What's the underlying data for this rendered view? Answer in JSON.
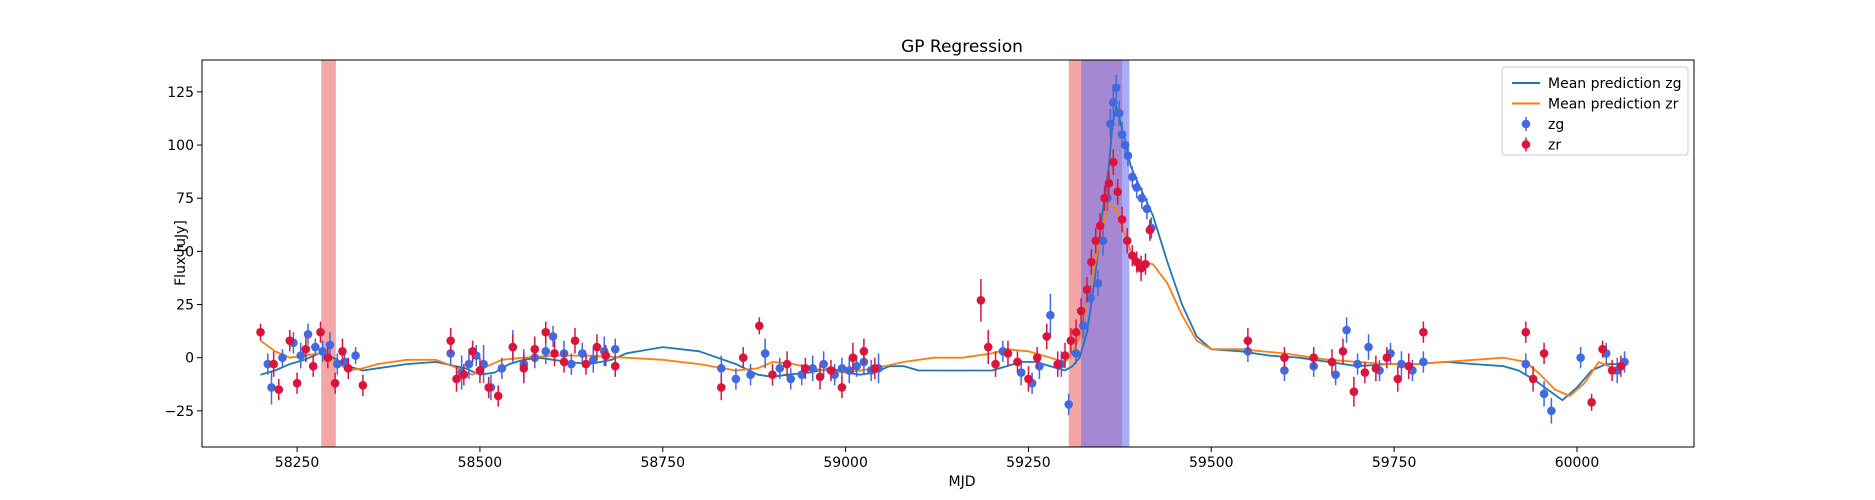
{
  "chart_data": {
    "type": "scatter",
    "title": "GP Regression",
    "xlabel": "MJD",
    "ylabel": "Flux [uJy]",
    "xlim": [
      58120,
      60160
    ],
    "ylim": [
      -42,
      140
    ],
    "xticks": [
      58250,
      58500,
      58750,
      59000,
      59250,
      59500,
      59750,
      60000
    ],
    "yticks": [
      -25,
      0,
      25,
      50,
      75,
      100,
      125
    ],
    "grid": false,
    "legend_position": "top-right",
    "legend": [
      "Mean prediction zg",
      "Mean prediction zr",
      "zg",
      "zr"
    ],
    "colors": {
      "zg_line": "#1f77b4",
      "zr_line": "#ff7f0e",
      "zg_points": "#4169e1",
      "zr_points": "#dc143c",
      "band_red": "#f08080",
      "band_blue": "#6f73f0"
    },
    "shaded_regions": [
      {
        "x0": 58283,
        "x1": 58303,
        "color": "red"
      },
      {
        "x0": 59305,
        "x1": 59378,
        "color": "red"
      },
      {
        "x0": 59322,
        "x1": 59388,
        "color": "blue"
      }
    ],
    "series": [
      {
        "name": "Mean prediction zg",
        "kind": "line",
        "x": [
          58200,
          58220,
          58240,
          58260,
          58280,
          58300,
          58320,
          58340,
          58360,
          58400,
          58440,
          58480,
          58500,
          58520,
          58540,
          58560,
          58580,
          58600,
          58620,
          58650,
          58680,
          58700,
          58750,
          58800,
          58850,
          58880,
          58900,
          58920,
          58950,
          58980,
          59000,
          59020,
          59040,
          59060,
          59080,
          59100,
          59150,
          59200,
          59220,
          59240,
          59260,
          59280,
          59300,
          59310,
          59320,
          59330,
          59340,
          59350,
          59360,
          59365,
          59370,
          59380,
          59390,
          59400,
          59420,
          59440,
          59460,
          59480,
          59500,
          59540,
          59580,
          59620,
          59660,
          59700,
          59740,
          59780,
          59820,
          59860,
          59900,
          59920,
          59940,
          59960,
          59980,
          60000,
          60020,
          60040,
          60060
        ],
        "y": [
          -8,
          -6,
          -3,
          -1,
          2,
          0,
          -4,
          -6,
          -5,
          -3,
          -2,
          -5,
          -8,
          -7,
          -3,
          -1,
          0,
          -1,
          -2,
          -3,
          -1,
          2,
          5,
          3,
          -3,
          -8,
          -9,
          -8,
          -7,
          -5,
          -7,
          -8,
          -7,
          -4,
          -4,
          -6,
          -6,
          -6,
          -4,
          -2,
          -2,
          -4,
          -6,
          -4,
          0,
          12,
          35,
          65,
          90,
          110,
          118,
          105,
          90,
          82,
          67,
          45,
          25,
          10,
          4,
          3,
          1,
          0,
          -2,
          -4,
          -3,
          -3,
          -2,
          -3,
          -4,
          -6,
          -10,
          -15,
          -20,
          -14,
          -6,
          -3,
          -3
        ]
      },
      {
        "name": "Mean prediction zr",
        "kind": "line",
        "x": [
          58200,
          58220,
          58240,
          58260,
          58280,
          58300,
          58320,
          58340,
          58360,
          58400,
          58440,
          58470,
          58490,
          58510,
          58530,
          58560,
          58600,
          58650,
          58700,
          58750,
          58800,
          58850,
          58880,
          58900,
          58930,
          58950,
          59000,
          59040,
          59080,
          59120,
          59160,
          59200,
          59220,
          59250,
          59280,
          59300,
          59310,
          59320,
          59330,
          59340,
          59350,
          59360,
          59370,
          59380,
          59390,
          59400,
          59420,
          59440,
          59460,
          59480,
          59500,
          59540,
          59600,
          59660,
          59700,
          59740,
          59780,
          59820,
          59860,
          59900,
          59930,
          59950,
          59970,
          59990,
          60010,
          60030,
          60050,
          60060
        ],
        "y": [
          8,
          3,
          0,
          1,
          2,
          -1,
          -6,
          -5,
          -3,
          -1,
          -1,
          -5,
          -8,
          -4,
          -1,
          0,
          1,
          1,
          0,
          -1,
          -3,
          -6,
          -5,
          -2,
          -3,
          -5,
          -7,
          -5,
          -2,
          0,
          0,
          2,
          4,
          3,
          0,
          -2,
          2,
          10,
          25,
          42,
          60,
          72,
          70,
          60,
          50,
          45,
          44,
          35,
          20,
          8,
          4,
          4,
          2,
          -1,
          -2,
          -3,
          -3,
          -2,
          -1,
          0,
          -2,
          -8,
          -15,
          -18,
          -12,
          -2,
          -5,
          -6
        ]
      },
      {
        "name": "zg",
        "kind": "points",
        "x": [
          58210,
          58215,
          58230,
          58245,
          58255,
          58265,
          58275,
          58285,
          58295,
          58305,
          58315,
          58330,
          58460,
          58475,
          58485,
          58495,
          58505,
          58515,
          58530,
          58545,
          58560,
          58575,
          58590,
          58600,
          58615,
          58625,
          58640,
          58655,
          58670,
          58685,
          58830,
          58850,
          58870,
          58890,
          58910,
          58925,
          58940,
          58955,
          58970,
          58985,
          58995,
          59005,
          59015,
          59025,
          59035,
          59045,
          59215,
          59240,
          59255,
          59265,
          59280,
          59295,
          59305,
          59315,
          59325,
          59335,
          59345,
          59352,
          59358,
          59362,
          59366,
          59370,
          59374,
          59378,
          59382,
          59386,
          59392,
          59398,
          59405,
          59412,
          59418,
          59550,
          59600,
          59640,
          59670,
          59685,
          59700,
          59715,
          59730,
          59745,
          59760,
          59775,
          59790,
          59930,
          59955,
          59965,
          60005,
          60040,
          60055,
          60065
        ],
        "y": [
          -3,
          -14,
          0,
          7,
          1,
          11,
          5,
          3,
          6,
          -3,
          -2,
          1,
          2,
          -7,
          -3,
          1,
          -3,
          -14,
          -5,
          5,
          -3,
          0,
          3,
          10,
          2,
          -3,
          2,
          -1,
          3,
          4,
          -5,
          -10,
          -8,
          2,
          -5,
          -10,
          -8,
          -5,
          -3,
          -8,
          -5,
          -6,
          -4,
          -2,
          -6,
          -5,
          3,
          -7,
          -12,
          -4,
          20,
          -3,
          -22,
          2,
          15,
          28,
          35,
          55,
          75,
          110,
          120,
          127,
          115,
          105,
          100,
          95,
          85,
          80,
          75,
          70,
          61,
          3,
          -6,
          -4,
          -8,
          13,
          -3,
          5,
          -6,
          2,
          -3,
          -6,
          -2,
          -3,
          -17,
          -25,
          0,
          2,
          -6,
          -2
        ],
        "err": [
          5,
          8,
          4,
          5,
          6,
          5,
          4,
          5,
          6,
          5,
          4,
          4,
          6,
          8,
          7,
          5,
          9,
          6,
          5,
          8,
          7,
          5,
          6,
          5,
          6,
          5,
          5,
          6,
          7,
          5,
          6,
          5,
          5,
          7,
          5,
          5,
          5,
          6,
          6,
          5,
          5,
          6,
          5,
          6,
          5,
          7,
          5,
          6,
          5,
          6,
          10,
          6,
          5,
          5,
          6,
          6,
          6,
          7,
          6,
          7,
          7,
          6,
          6,
          6,
          6,
          5,
          5,
          5,
          5,
          5,
          5,
          5,
          5,
          5,
          5,
          6,
          5,
          6,
          5,
          5,
          6,
          5,
          5,
          5,
          6,
          6,
          5,
          5,
          6,
          5
        ]
      },
      {
        "name": "zr",
        "kind": "points",
        "x": [
          58200,
          58218,
          58225,
          58240,
          58250,
          58262,
          58272,
          58282,
          58292,
          58302,
          58312,
          58320,
          58340,
          58460,
          58468,
          58478,
          58490,
          58500,
          58512,
          58525,
          58545,
          58560,
          58575,
          58590,
          58602,
          58615,
          58630,
          58645,
          58660,
          58672,
          58685,
          58830,
          58860,
          58882,
          58900,
          58920,
          58945,
          58965,
          58980,
          58995,
          59010,
          59025,
          59040,
          59185,
          59195,
          59205,
          59222,
          59235,
          59250,
          59262,
          59275,
          59290,
          59300,
          59308,
          59315,
          59322,
          59330,
          59336,
          59342,
          59348,
          59354,
          59360,
          59366,
          59372,
          59378,
          59385,
          59392,
          59398,
          59404,
          59410,
          59416,
          59550,
          59600,
          59640,
          59665,
          59680,
          59695,
          59710,
          59725,
          59740,
          59755,
          59770,
          59790,
          59930,
          59940,
          59955,
          60020,
          60035,
          60048,
          60060
        ],
        "y": [
          12,
          -3,
          -15,
          8,
          -12,
          4,
          -4,
          12,
          0,
          -12,
          3,
          -5,
          -13,
          8,
          -10,
          -8,
          3,
          -6,
          -14,
          -18,
          5,
          -5,
          4,
          12,
          2,
          -2,
          8,
          -3,
          5,
          1,
          -4,
          -14,
          0,
          15,
          -8,
          -3,
          -5,
          -9,
          -6,
          -14,
          0,
          3,
          -5,
          27,
          5,
          -3,
          2,
          -2,
          -10,
          0,
          10,
          -3,
          1,
          8,
          12,
          22,
          32,
          45,
          55,
          62,
          75,
          82,
          92,
          78,
          65,
          55,
          48,
          45,
          42,
          44,
          60,
          8,
          0,
          0,
          -2,
          3,
          -16,
          -7,
          -5,
          0,
          -10,
          -4,
          12,
          12,
          -10,
          2,
          -21,
          4,
          -6,
          -4
        ],
        "err": [
          4,
          6,
          5,
          5,
          5,
          6,
          5,
          5,
          5,
          5,
          6,
          5,
          5,
          6,
          6,
          5,
          5,
          6,
          5,
          5,
          6,
          7,
          6,
          5,
          6,
          5,
          6,
          5,
          6,
          5,
          5,
          6,
          5,
          4,
          5,
          6,
          5,
          6,
          5,
          5,
          7,
          6,
          5,
          10,
          8,
          6,
          6,
          5,
          6,
          5,
          6,
          6,
          6,
          6,
          6,
          6,
          6,
          6,
          6,
          6,
          6,
          6,
          6,
          6,
          6,
          6,
          5,
          5,
          6,
          5,
          5,
          6,
          5,
          5,
          6,
          6,
          7,
          5,
          6,
          5,
          6,
          6,
          5,
          5,
          6,
          5,
          4,
          4,
          5,
          5
        ]
      }
    ]
  }
}
